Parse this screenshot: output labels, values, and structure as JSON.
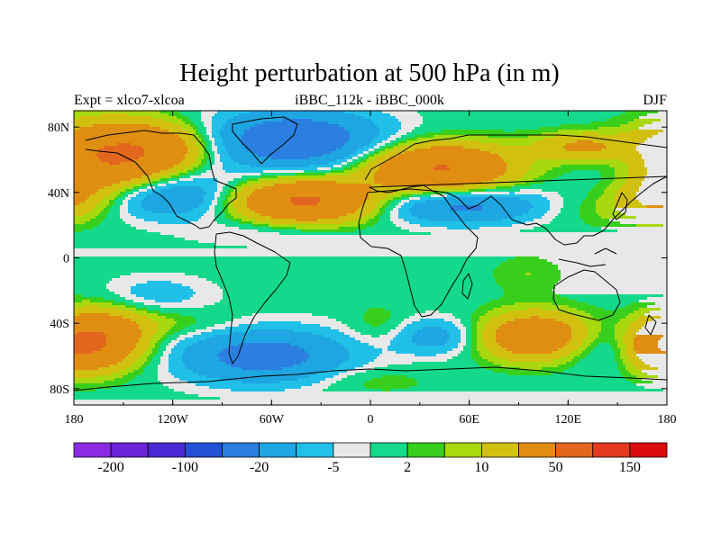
{
  "title": "Height perturbation at 500 hPa (in m)",
  "subtitle_left": "Expt = xlco7-xlcoa",
  "subtitle_center": "iBBC_112k - iBBC_000k",
  "subtitle_right": "DJF",
  "axes": {
    "x_ticks": [
      {
        "lon": -180,
        "label": "180"
      },
      {
        "lon": -120,
        "label": "120W"
      },
      {
        "lon": -60,
        "label": "60W"
      },
      {
        "lon": 0,
        "label": "0"
      },
      {
        "lon": 60,
        "label": "60E"
      },
      {
        "lon": 120,
        "label": "120E"
      },
      {
        "lon": 180,
        "label": "180"
      }
    ],
    "y_ticks": [
      {
        "lat": 80,
        "label": "80N"
      },
      {
        "lat": 40,
        "label": "40N"
      },
      {
        "lat": 0,
        "label": "0"
      },
      {
        "lat": -40,
        "label": "40S"
      },
      {
        "lat": -80,
        "label": "80S"
      }
    ],
    "lon_range": [
      -180,
      180
    ],
    "lat_range": [
      -90,
      90
    ]
  },
  "colorbar": {
    "colors": [
      "#8a2be2",
      "#6a24d8",
      "#4b2ad6",
      "#2350d4",
      "#2b7fe0",
      "#1ea6e2",
      "#20c0e8",
      "#e8e8e8",
      "#14d98a",
      "#38cf1c",
      "#a8d80e",
      "#d2c010",
      "#e08e12",
      "#e2661e",
      "#e23a1e",
      "#dc0a0a"
    ],
    "labels": [
      {
        "edge": 1,
        "text": "-200"
      },
      {
        "edge": 3,
        "text": "-100"
      },
      {
        "edge": 5,
        "text": "-20"
      },
      {
        "edge": 7,
        "text": "-5"
      },
      {
        "edge": 9,
        "text": "2"
      },
      {
        "edge": 11,
        "text": "10"
      },
      {
        "edge": 13,
        "text": "50"
      },
      {
        "edge": 15,
        "text": "150"
      }
    ]
  },
  "field_anomalies": [
    {
      "lon": -160,
      "lat": 62,
      "slon": 28,
      "slat": 14,
      "amp": 52
    },
    {
      "lon": -125,
      "lat": 68,
      "slon": 20,
      "slat": 10,
      "amp": 20
    },
    {
      "lon": -45,
      "lat": 72,
      "slon": 38,
      "slat": 13,
      "amp": -32
    },
    {
      "lon": -120,
      "lat": 38,
      "slon": 30,
      "slat": 10,
      "amp": -22
    },
    {
      "lon": -40,
      "lat": 35,
      "slon": 30,
      "slat": 9,
      "amp": 55
    },
    {
      "lon": 42,
      "lat": 55,
      "slon": 30,
      "slat": 10,
      "amp": 52
    },
    {
      "lon": 128,
      "lat": 68,
      "slon": 20,
      "slat": 6,
      "amp": 22
    },
    {
      "lon": 165,
      "lat": 55,
      "slon": 22,
      "slat": 12,
      "amp": -8
    },
    {
      "lon": 175,
      "lat": 38,
      "slon": 18,
      "slat": 10,
      "amp": 22
    },
    {
      "lon": 55,
      "lat": 32,
      "slon": 38,
      "slat": 8,
      "amp": -24
    },
    {
      "lon": 140,
      "lat": 30,
      "slon": 28,
      "slat": 8,
      "amp": 6
    },
    {
      "lon": -65,
      "lat": 15,
      "slon": 30,
      "slat": 6,
      "amp": -6
    },
    {
      "lon": -165,
      "lat": -50,
      "slon": 20,
      "slat": 12,
      "amp": 45
    },
    {
      "lon": -130,
      "lat": -22,
      "slon": 24,
      "slat": 8,
      "amp": -8
    },
    {
      "lon": -120,
      "lat": -40,
      "slon": 28,
      "slat": 6,
      "amp": 6
    },
    {
      "lon": -65,
      "lat": -60,
      "slon": 38,
      "slat": 12,
      "amp": -26
    },
    {
      "lon": 5,
      "lat": -40,
      "slon": 12,
      "slat": 8,
      "amp": 5
    },
    {
      "lon": 40,
      "lat": -48,
      "slon": 18,
      "slat": 8,
      "amp": -14
    },
    {
      "lon": 100,
      "lat": -48,
      "slon": 22,
      "slat": 10,
      "amp": 40
    },
    {
      "lon": 150,
      "lat": -55,
      "slon": 24,
      "slat": 9,
      "amp": -10
    },
    {
      "lon": 95,
      "lat": -10,
      "slon": 15,
      "slat": 8,
      "amp": 5
    },
    {
      "lon": 175,
      "lat": -55,
      "slon": 16,
      "slat": 10,
      "amp": 30
    },
    {
      "lon": 0,
      "lat": -75,
      "slon": 25,
      "slat": 6,
      "amp": 5
    }
  ]
}
